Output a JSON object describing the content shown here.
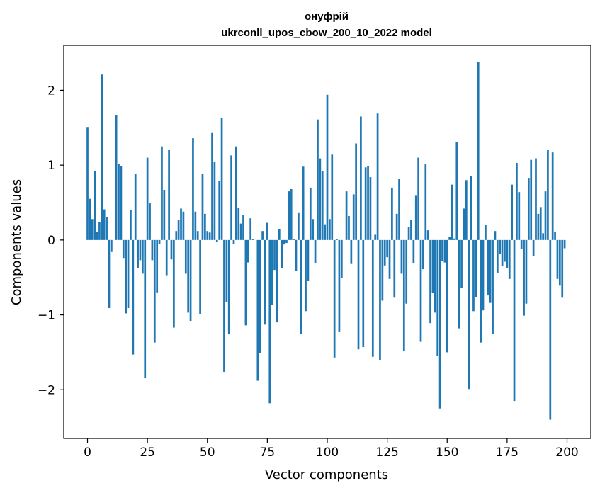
{
  "chart_data": {
    "type": "bar",
    "title": "онуфрій",
    "subtitle": "ukrconll_upos_cbow_200_10_2022 model",
    "xlabel": "Vector components",
    "ylabel": "Components values",
    "xlim": [
      -9.9,
      209.9
    ],
    "ylim": [
      -2.65,
      2.6
    ],
    "xticks": [
      0,
      25,
      50,
      75,
      100,
      125,
      150,
      175,
      200
    ],
    "yticks": [
      -2,
      -1,
      0,
      1,
      2
    ],
    "bar_color": "#1f77b4",
    "grid": false,
    "legend": "none",
    "values": [
      1.51,
      0.55,
      0.28,
      0.92,
      0.11,
      0.24,
      2.21,
      0.41,
      0.31,
      -0.91,
      -0.16,
      0.0,
      1.67,
      1.02,
      0.99,
      -0.24,
      -0.98,
      -0.91,
      0.4,
      -1.53,
      0.88,
      -0.37,
      -0.27,
      -0.45,
      -1.84,
      1.1,
      0.49,
      -0.27,
      -1.37,
      -0.7,
      -0.05,
      1.25,
      0.67,
      -0.47,
      1.2,
      -0.26,
      -1.17,
      0.12,
      0.27,
      0.42,
      0.38,
      -0.45,
      -0.97,
      -1.08,
      1.36,
      0.38,
      0.12,
      -0.99,
      0.88,
      0.35,
      0.12,
      0.1,
      1.43,
      1.04,
      -0.03,
      0.79,
      1.63,
      -1.76,
      -0.83,
      -1.26,
      1.13,
      -0.05,
      1.25,
      0.43,
      0.22,
      0.33,
      -1.14,
      -0.3,
      0.29,
      0.01,
      0.0,
      -1.88,
      -1.51,
      0.12,
      -1.13,
      0.23,
      -2.18,
      -0.87,
      -0.4,
      -1.1,
      0.15,
      -0.37,
      -0.06,
      -0.04,
      0.65,
      0.68,
      0.01,
      -0.41,
      0.36,
      -1.26,
      0.98,
      -0.95,
      -0.55,
      0.7,
      0.28,
      -0.31,
      1.61,
      1.09,
      0.92,
      0.21,
      1.94,
      0.28,
      1.14,
      -1.57,
      0.01,
      -1.23,
      -0.51,
      0.0,
      0.65,
      0.32,
      -0.32,
      0.61,
      1.29,
      -1.46,
      1.65,
      -1.43,
      0.97,
      0.99,
      0.84,
      -1.56,
      0.07,
      1.69,
      -1.6,
      -0.81,
      -0.34,
      -0.23,
      -0.52,
      0.7,
      -0.77,
      0.35,
      0.82,
      -0.45,
      -1.48,
      -0.85,
      0.17,
      0.27,
      -0.31,
      0.6,
      1.1,
      -1.36,
      -0.39,
      1.01,
      0.13,
      -1.11,
      -0.71,
      -0.97,
      -1.55,
      -2.25,
      -0.28,
      -0.3,
      -1.5,
      0.04,
      0.74,
      0.02,
      1.31,
      -1.18,
      -0.64,
      0.42,
      0.8,
      -1.99,
      0.85,
      -0.95,
      -0.76,
      2.38,
      -1.37,
      -0.94,
      0.2,
      -0.74,
      -0.84,
      -1.25,
      0.12,
      -0.44,
      -0.19,
      -0.35,
      -0.29,
      -0.38,
      -0.52,
      0.74,
      -2.15,
      1.03,
      0.64,
      -0.12,
      -1.01,
      -0.85,
      0.83,
      1.07,
      -0.21,
      1.09,
      0.35,
      0.44,
      0.09,
      0.65,
      1.2,
      -2.4,
      1.17,
      0.11,
      -0.52,
      -0.61,
      -0.77,
      -0.11
    ]
  }
}
